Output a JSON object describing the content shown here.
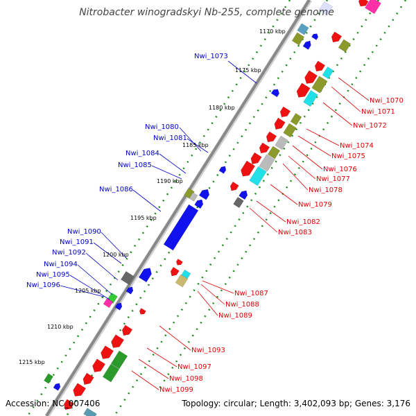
{
  "title": "Nitrobacter winogradskyi Nb-255, complete genome",
  "footer": {
    "accession": "Accession: NC_007406",
    "summary": "Topology: circular; Length: 3,402,093 bp; Genes: 3,176"
  },
  "kbp_ticks": [
    "1170 kbp",
    "1175 kbp",
    "1180 kbp",
    "1185 kbp",
    "1190 kbp",
    "1195 kbp",
    "1200 kbp",
    "1205 kbp",
    "1210 kbp",
    "1215 kbp"
  ],
  "left_labels": [
    "Nwi_1073",
    "Nwi_1080",
    "Nwi_1081",
    "Nwi_1084",
    "Nwi_1085",
    "Nwi_1086",
    "Nwi_1090",
    "Nwi_1091",
    "Nwi_1092",
    "Nwi_1094",
    "Nwi_1095",
    "Nwi_1096"
  ],
  "right_labels": [
    "Nwi_1070",
    "Nwi_1071",
    "Nwi_1072",
    "Nwi_1074",
    "Nwi_1075",
    "Nwi_1076",
    "Nwi_1077",
    "Nwi_1078",
    "Nwi_1079",
    "Nwi_1082",
    "Nwi_1083",
    "Nwi_1087",
    "Nwi_1088",
    "Nwi_1089",
    "Nwi_1093",
    "Nwi_1097",
    "Nwi_1098",
    "Nwi_1099"
  ],
  "colors": {
    "forward_gene": "#ff0000",
    "reverse_gene": "#0000ff",
    "left_label": "#0000c8",
    "right_label": "#dd0000",
    "backbone": "#888888",
    "gc_skew": "#1a8a1a"
  }
}
